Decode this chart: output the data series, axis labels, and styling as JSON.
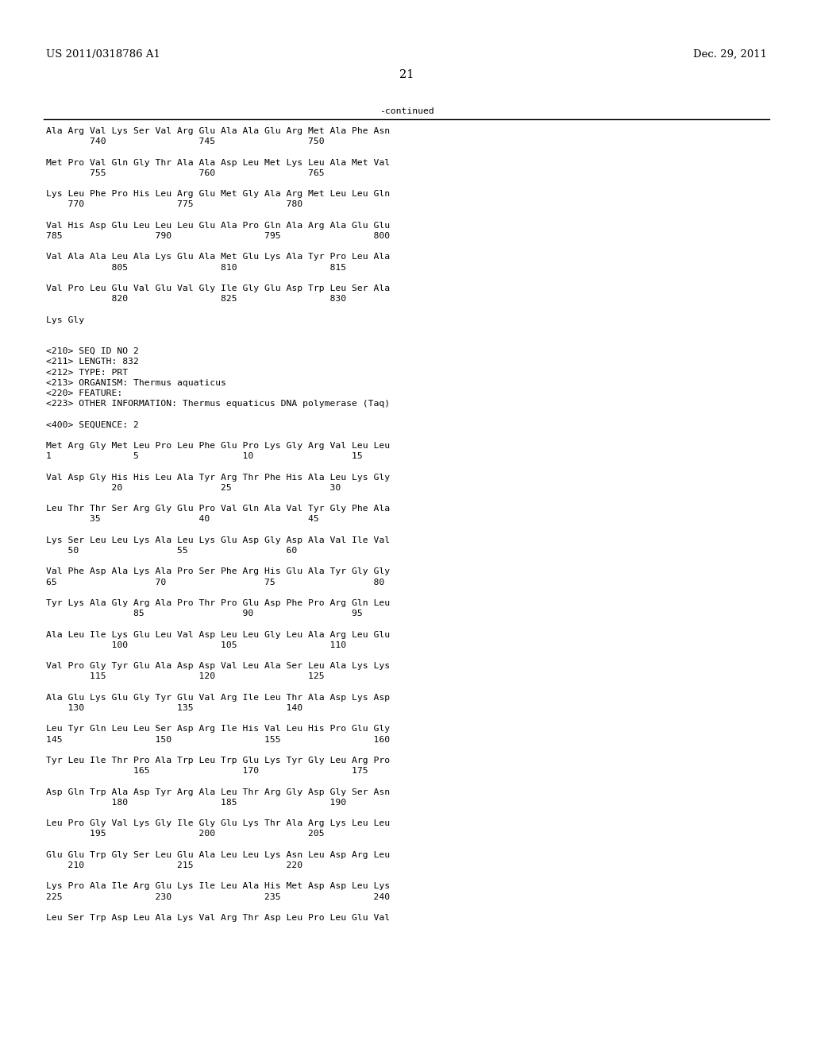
{
  "patent_number": "US 2011/0318786 A1",
  "date": "Dec. 29, 2011",
  "page_number": "21",
  "continued_label": "-continued",
  "background_color": "#ffffff",
  "text_color": "#000000",
  "font_size_header": 9.5,
  "font_size_page": 10.5,
  "font_size_body": 8.2,
  "lines": [
    "Ala Arg Val Lys Ser Val Arg Glu Ala Ala Glu Arg Met Ala Phe Asn",
    "        740                 745                 750",
    "",
    "Met Pro Val Gln Gly Thr Ala Ala Asp Leu Met Lys Leu Ala Met Val",
    "        755                 760                 765",
    "",
    "Lys Leu Phe Pro His Leu Arg Glu Met Gly Ala Arg Met Leu Leu Gln",
    "    770                 775                 780",
    "",
    "Val His Asp Glu Leu Leu Leu Glu Ala Pro Gln Ala Arg Ala Glu Glu",
    "785                 790                 795                 800",
    "",
    "Val Ala Ala Leu Ala Lys Glu Ala Met Glu Lys Ala Tyr Pro Leu Ala",
    "            805                 810                 815",
    "",
    "Val Pro Leu Glu Val Glu Val Gly Ile Gly Glu Asp Trp Leu Ser Ala",
    "            820                 825                 830",
    "",
    "Lys Gly",
    "",
    "",
    "<210> SEQ ID NO 2",
    "<211> LENGTH: 832",
    "<212> TYPE: PRT",
    "<213> ORGANISM: Thermus aquaticus",
    "<220> FEATURE:",
    "<223> OTHER INFORMATION: Thermus equaticus DNA polymerase (Taq)",
    "",
    "<400> SEQUENCE: 2",
    "",
    "Met Arg Gly Met Leu Pro Leu Phe Glu Pro Lys Gly Arg Val Leu Leu",
    "1               5                   10                  15",
    "",
    "Val Asp Gly His His Leu Ala Tyr Arg Thr Phe His Ala Leu Lys Gly",
    "            20                  25                  30",
    "",
    "Leu Thr Thr Ser Arg Gly Glu Pro Val Gln Ala Val Tyr Gly Phe Ala",
    "        35                  40                  45",
    "",
    "Lys Ser Leu Leu Lys Ala Leu Lys Glu Asp Gly Asp Ala Val Ile Val",
    "    50                  55                  60",
    "",
    "Val Phe Asp Ala Lys Ala Pro Ser Phe Arg His Glu Ala Tyr Gly Gly",
    "65                  70                  75                  80",
    "",
    "Tyr Lys Ala Gly Arg Ala Pro Thr Pro Glu Asp Phe Pro Arg Gln Leu",
    "                85                  90                  95",
    "",
    "Ala Leu Ile Lys Glu Leu Val Asp Leu Leu Gly Leu Ala Arg Leu Glu",
    "            100                 105                 110",
    "",
    "Val Pro Gly Tyr Glu Ala Asp Asp Val Leu Ala Ser Leu Ala Lys Lys",
    "        115                 120                 125",
    "",
    "Ala Glu Lys Glu Gly Tyr Glu Val Arg Ile Leu Thr Ala Asp Lys Asp",
    "    130                 135                 140",
    "",
    "Leu Tyr Gln Leu Leu Ser Asp Arg Ile His Val Leu His Pro Glu Gly",
    "145                 150                 155                 160",
    "",
    "Tyr Leu Ile Thr Pro Ala Trp Leu Trp Glu Lys Tyr Gly Leu Arg Pro",
    "                165                 170                 175",
    "",
    "Asp Gln Trp Ala Asp Tyr Arg Ala Leu Thr Arg Gly Asp Gly Ser Asn",
    "            180                 185                 190",
    "",
    "Leu Pro Gly Val Lys Gly Ile Gly Glu Lys Thr Ala Arg Lys Leu Leu",
    "        195                 200                 205",
    "",
    "Glu Glu Trp Gly Ser Leu Glu Ala Leu Leu Lys Asn Leu Asp Arg Leu",
    "    210                 215                 220",
    "",
    "Lys Pro Ala Ile Arg Glu Lys Ile Leu Ala His Met Asp Asp Leu Lys",
    "225                 230                 235                 240",
    "",
    "Leu Ser Trp Asp Leu Ala Lys Val Arg Thr Asp Leu Pro Leu Glu Val"
  ]
}
